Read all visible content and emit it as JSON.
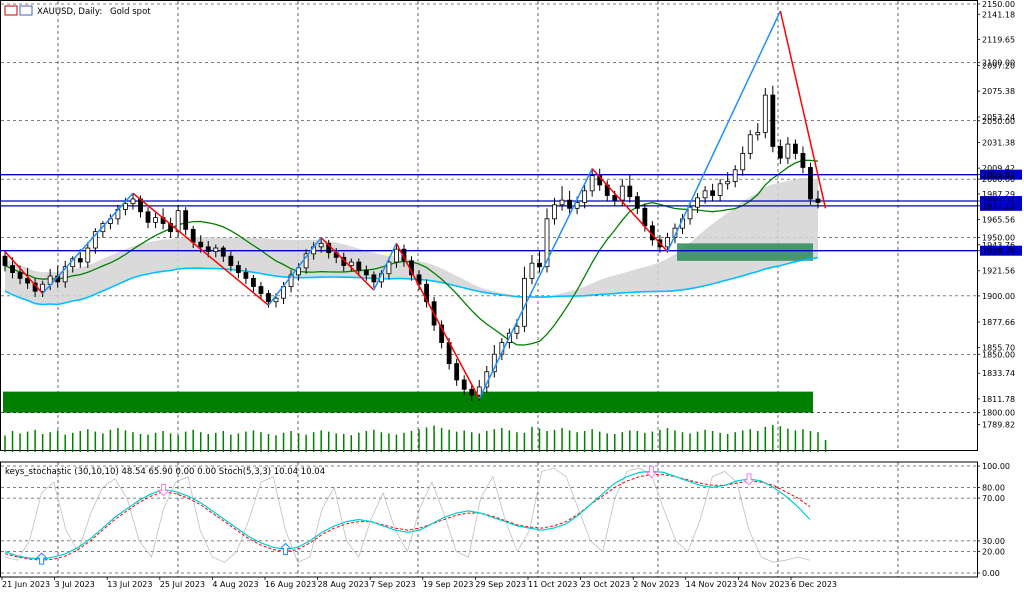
{
  "header": {
    "symbol": "XAUUSD, Daily:",
    "description": "Gold spot"
  },
  "stochastic_header": {
    "text": "keys_stochastic (30,10,10) 48.54 65.90 0.00 0.00 Stoch(5,3,3) 10.04 10.04"
  },
  "colors": {
    "up_candle": "#ffffff",
    "down_candle": "#000000",
    "zigzag_up": "#1e90ff",
    "zigzag_down": "#ff0000",
    "ma_green": "#008000",
    "ma_blue": "#00bfff",
    "level_line": "#0000cd",
    "demand_zone": "#008000",
    "teal_zone": "#2e8b57",
    "cloud": "#d3d3d3",
    "volume": "#008000",
    "stoch_main": "#00ced1",
    "stoch_signal": "#ff0000",
    "stoch_fast": "#c0c0c0",
    "arrow_up": "#1e90ff",
    "arrow_down": "#ee82ee"
  },
  "chart_data": {
    "type": "candlestick",
    "title": "XAUUSD, Daily: Gold spot",
    "price_axis": {
      "ylim": [
        1768,
        2150
      ],
      "tick_labels": [
        "2150.00",
        "2141.18",
        "2119.65",
        "2100.00",
        "2097.20",
        "2075.38",
        "2053.24",
        "2050.00",
        "2031.38",
        "2009.42",
        "2003.82",
        "2000.00",
        "1987.29",
        "1981.24",
        "1977.12",
        "1965.56",
        "1950.00",
        "1943.76",
        "1938.70",
        "1921.56",
        "1900.00",
        "1877.66",
        "1855.70",
        "1850.00",
        "1833.74",
        "1811.78",
        "1800.00",
        "1789.82"
      ],
      "highlighted_labels": [
        "2003.82",
        "1981.24",
        "1977.12",
        "1938.70"
      ]
    },
    "date_axis": {
      "labels": [
        "21 Jun 2023",
        "3 Jul 2023",
        "13 Jul 2023",
        "25 Jul 2023",
        "4 Aug 2023",
        "16 Aug 2023",
        "28 Aug 2023",
        "7 Sep 2023",
        "19 Sep 2023",
        "29 Sep 2023",
        "11 Oct 2023",
        "23 Oct 2023",
        "2 Nov 2023",
        "14 Nov 2023",
        "24 Nov 2023",
        "6 Dec 2023"
      ]
    },
    "horizontal_levels": [
      2003.82,
      1981.24,
      1977.12,
      1938.7
    ],
    "zones": [
      {
        "name": "demand",
        "from": 1800,
        "to": 1818
      },
      {
        "name": "teal",
        "from": 1930,
        "to": 1945
      }
    ],
    "candles": [
      {
        "o": 1934,
        "h": 1938,
        "c": 1926
      },
      {
        "o": 1926,
        "h": 1933,
        "c": 1920
      },
      {
        "o": 1920,
        "h": 1926,
        "c": 1915
      },
      {
        "o": 1915,
        "h": 1924,
        "c": 1911
      },
      {
        "o": 1911,
        "h": 1915,
        "c": 1904
      },
      {
        "o": 1904,
        "h": 1913,
        "c": 1910
      },
      {
        "o": 1910,
        "h": 1923,
        "c": 1917
      },
      {
        "o": 1917,
        "h": 1926,
        "c": 1912
      },
      {
        "o": 1912,
        "h": 1930,
        "c": 1925
      },
      {
        "o": 1925,
        "h": 1934,
        "c": 1932
      },
      {
        "o": 1932,
        "h": 1940,
        "c": 1929
      },
      {
        "o": 1929,
        "h": 1946,
        "c": 1941
      },
      {
        "o": 1941,
        "h": 1958,
        "c": 1955
      },
      {
        "o": 1955,
        "h": 1964,
        "c": 1962
      },
      {
        "o": 1962,
        "h": 1970,
        "c": 1966
      },
      {
        "o": 1966,
        "h": 1978,
        "c": 1974
      },
      {
        "o": 1974,
        "h": 1984,
        "c": 1979
      },
      {
        "o": 1979,
        "h": 1988,
        "c": 1983
      },
      {
        "o": 1983,
        "h": 1986,
        "c": 1972
      },
      {
        "o": 1972,
        "h": 1976,
        "c": 1963
      },
      {
        "o": 1963,
        "h": 1971,
        "c": 1967
      },
      {
        "o": 1967,
        "h": 1975,
        "c": 1962
      },
      {
        "o": 1962,
        "h": 1967,
        "c": 1955
      },
      {
        "o": 1955,
        "h": 1978,
        "c": 1973
      },
      {
        "o": 1973,
        "h": 1976,
        "c": 1957
      },
      {
        "o": 1957,
        "h": 1960,
        "c": 1946
      },
      {
        "o": 1946,
        "h": 1952,
        "c": 1942
      },
      {
        "o": 1942,
        "h": 1947,
        "c": 1938
      },
      {
        "o": 1938,
        "h": 1944,
        "c": 1941
      },
      {
        "o": 1941,
        "h": 1943,
        "c": 1934
      },
      {
        "o": 1934,
        "h": 1938,
        "c": 1926
      },
      {
        "o": 1926,
        "h": 1930,
        "c": 1920
      },
      {
        "o": 1920,
        "h": 1924,
        "c": 1915
      },
      {
        "o": 1915,
        "h": 1918,
        "c": 1908
      },
      {
        "o": 1908,
        "h": 1912,
        "c": 1902
      },
      {
        "o": 1902,
        "h": 1905,
        "c": 1895
      },
      {
        "o": 1895,
        "h": 1902,
        "c": 1898
      },
      {
        "o": 1898,
        "h": 1912,
        "c": 1908
      },
      {
        "o": 1908,
        "h": 1922,
        "c": 1918
      },
      {
        "o": 1918,
        "h": 1928,
        "c": 1924
      },
      {
        "o": 1924,
        "h": 1940,
        "c": 1936
      },
      {
        "o": 1936,
        "h": 1946,
        "c": 1942
      },
      {
        "o": 1942,
        "h": 1950,
        "c": 1945
      },
      {
        "o": 1945,
        "h": 1948,
        "c": 1937
      },
      {
        "o": 1937,
        "h": 1941,
        "c": 1933
      },
      {
        "o": 1933,
        "h": 1937,
        "c": 1926
      },
      {
        "o": 1926,
        "h": 1932,
        "c": 1929
      },
      {
        "o": 1929,
        "h": 1932,
        "c": 1922
      },
      {
        "o": 1922,
        "h": 1926,
        "c": 1918
      },
      {
        "o": 1918,
        "h": 1921,
        "c": 1912
      },
      {
        "o": 1912,
        "h": 1922,
        "c": 1919
      },
      {
        "o": 1919,
        "h": 1932,
        "c": 1929
      },
      {
        "o": 1929,
        "h": 1945,
        "c": 1940
      },
      {
        "o": 1940,
        "h": 1944,
        "c": 1930
      },
      {
        "o": 1930,
        "h": 1934,
        "c": 1918
      },
      {
        "o": 1918,
        "h": 1922,
        "c": 1910
      },
      {
        "o": 1910,
        "h": 1914,
        "c": 1895
      },
      {
        "o": 1895,
        "h": 1899,
        "c": 1875
      },
      {
        "o": 1875,
        "h": 1879,
        "c": 1860
      },
      {
        "o": 1860,
        "h": 1864,
        "c": 1842
      },
      {
        "o": 1842,
        "h": 1846,
        "c": 1828
      },
      {
        "o": 1828,
        "h": 1832,
        "c": 1820
      },
      {
        "o": 1820,
        "h": 1824,
        "c": 1815
      },
      {
        "o": 1815,
        "h": 1828,
        "c": 1822
      },
      {
        "o": 1822,
        "h": 1840,
        "c": 1835
      },
      {
        "o": 1835,
        "h": 1858,
        "c": 1850
      },
      {
        "o": 1850,
        "h": 1864,
        "c": 1860
      },
      {
        "o": 1860,
        "h": 1872,
        "c": 1868
      },
      {
        "o": 1868,
        "h": 1880,
        "c": 1874
      },
      {
        "o": 1874,
        "h": 1925,
        "c": 1915
      },
      {
        "o": 1915,
        "h": 1935,
        "c": 1928
      },
      {
        "o": 1928,
        "h": 1938,
        "c": 1925
      },
      {
        "o": 1925,
        "h": 1975,
        "c": 1966
      },
      {
        "o": 1966,
        "h": 1984,
        "c": 1978
      },
      {
        "o": 1978,
        "h": 1994,
        "c": 1982
      },
      {
        "o": 1982,
        "h": 1990,
        "c": 1975
      },
      {
        "o": 1975,
        "h": 1985,
        "c": 1980
      },
      {
        "o": 1980,
        "h": 1995,
        "c": 1990
      },
      {
        "o": 1990,
        "h": 2008,
        "c": 2003
      },
      {
        "o": 2003,
        "h": 2009,
        "c": 1995
      },
      {
        "o": 1995,
        "h": 1999,
        "c": 1986
      },
      {
        "o": 1986,
        "h": 1990,
        "c": 1982
      },
      {
        "o": 1982,
        "h": 2000,
        "c": 1994
      },
      {
        "o": 1994,
        "h": 2004,
        "c": 1985
      },
      {
        "o": 1985,
        "h": 1989,
        "c": 1975
      },
      {
        "o": 1975,
        "h": 1979,
        "c": 1960
      },
      {
        "o": 1960,
        "h": 1964,
        "c": 1948
      },
      {
        "o": 1948,
        "h": 1952,
        "c": 1942
      },
      {
        "o": 1942,
        "h": 1954,
        "c": 1950
      },
      {
        "o": 1950,
        "h": 1962,
        "c": 1958
      },
      {
        "o": 1958,
        "h": 1970,
        "c": 1966
      },
      {
        "o": 1966,
        "h": 1980,
        "c": 1976
      },
      {
        "o": 1976,
        "h": 1988,
        "c": 1984
      },
      {
        "o": 1984,
        "h": 1994,
        "c": 1990
      },
      {
        "o": 1990,
        "h": 1996,
        "c": 1986
      },
      {
        "o": 1986,
        "h": 2000,
        "c": 1996
      },
      {
        "o": 1996,
        "h": 2006,
        "c": 1998
      },
      {
        "o": 1998,
        "h": 2012,
        "c": 2008
      },
      {
        "o": 2008,
        "h": 2028,
        "c": 2022
      },
      {
        "o": 2022,
        "h": 2042,
        "c": 2038
      },
      {
        "o": 2038,
        "h": 2048,
        "c": 2040
      },
      {
        "o": 2040,
        "h": 2078,
        "c": 2072
      },
      {
        "o": 2072,
        "h": 2080,
        "c": 2028
      },
      {
        "o": 2028,
        "h": 2034,
        "c": 2018
      },
      {
        "o": 2018,
        "h": 2036,
        "c": 2030
      },
      {
        "o": 2030,
        "h": 2034,
        "c": 2022
      },
      {
        "o": 2022,
        "h": 2028,
        "c": 2010
      },
      {
        "o": 2010,
        "h": 2014,
        "c": 1983
      },
      {
        "o": 1983,
        "h": 1990,
        "c": 1980
      }
    ],
    "lows_offset": 5,
    "zigzag": [
      {
        "i": 0,
        "v": 1938
      },
      {
        "i": 5,
        "v": 1902
      },
      {
        "i": 17,
        "v": 1988
      },
      {
        "i": 35,
        "v": 1892
      },
      {
        "i": 42,
        "v": 1950
      },
      {
        "i": 49,
        "v": 1905
      },
      {
        "i": 52,
        "v": 1945
      },
      {
        "i": 63,
        "v": 1812
      },
      {
        "i": 78,
        "v": 2009
      },
      {
        "i": 88,
        "v": 1938
      },
      {
        "i": 103,
        "v": 2144
      },
      {
        "i": 109,
        "v": 1975
      }
    ],
    "volume_axis": {
      "ylim": [
        0,
        100
      ]
    },
    "volumes": [
      55,
      70,
      62,
      68,
      74,
      60,
      66,
      72,
      58,
      64,
      70,
      76,
      68,
      62,
      74,
      80,
      72,
      66,
      60,
      58,
      64,
      70,
      62,
      56,
      68,
      74,
      66,
      60,
      64,
      70,
      58,
      62,
      68,
      72,
      66,
      60,
      56,
      64,
      70,
      62,
      58,
      66,
      72,
      68,
      62,
      60,
      56,
      64,
      70,
      74,
      66,
      62,
      58,
      64,
      70,
      76,
      82,
      88,
      80,
      74,
      68,
      72,
      66,
      62,
      70,
      76,
      80,
      72,
      66,
      64,
      84,
      78,
      70,
      74,
      80,
      72,
      66,
      70,
      76,
      68,
      62,
      60,
      66,
      72,
      70,
      64,
      68,
      74,
      80,
      72,
      66,
      62,
      68,
      74,
      70,
      64,
      60,
      66,
      72,
      76,
      70,
      84,
      90,
      86,
      78,
      72,
      76,
      70,
      66,
      40
    ],
    "stochastic": {
      "ylim": [
        0,
        100
      ],
      "tick_labels": [
        "100.00",
        "80.00",
        "70.00",
        "30.00",
        "20.00",
        "0.00"
      ],
      "main": [
        20,
        16,
        14,
        13,
        15,
        18,
        24,
        32,
        42,
        52,
        60,
        68,
        74,
        78,
        76,
        72,
        66,
        58,
        50,
        42,
        34,
        28,
        24,
        22,
        24,
        30,
        38,
        44,
        48,
        50,
        48,
        44,
        40,
        38,
        40,
        46,
        52,
        56,
        58,
        56,
        52,
        48,
        44,
        42,
        40,
        42,
        46,
        54,
        64,
        74,
        84,
        90,
        94,
        95,
        94,
        90,
        86,
        82,
        80,
        82,
        86,
        88,
        86,
        80,
        72,
        62,
        50
      ],
      "signal": [
        18,
        15,
        13,
        12,
        13,
        16,
        22,
        30,
        40,
        50,
        58,
        66,
        72,
        76,
        74,
        70,
        64,
        56,
        48,
        40,
        32,
        26,
        22,
        20,
        22,
        28,
        36,
        42,
        46,
        48,
        48,
        45,
        42,
        40,
        42,
        46,
        50,
        54,
        56,
        56,
        53,
        49,
        45,
        43,
        42,
        44,
        48,
        55,
        64,
        72,
        80,
        86,
        90,
        92,
        92,
        90,
        87,
        84,
        82,
        82,
        84,
        86,
        85,
        82,
        76,
        70,
        62
      ],
      "fast": [
        15,
        12,
        30,
        75,
        85,
        40,
        20,
        55,
        80,
        88,
        70,
        30,
        15,
        60,
        85,
        90,
        40,
        15,
        10,
        20,
        50,
        85,
        90,
        40,
        10,
        15,
        60,
        80,
        30,
        15,
        50,
        75,
        40,
        20,
        60,
        85,
        55,
        20,
        15,
        70,
        90,
        50,
        20,
        40,
        95,
        98,
        90,
        60,
        30,
        20,
        70,
        95,
        98,
        92,
        60,
        30,
        20,
        50,
        90,
        95,
        85,
        40,
        15,
        10,
        12,
        15,
        12
      ]
    }
  }
}
